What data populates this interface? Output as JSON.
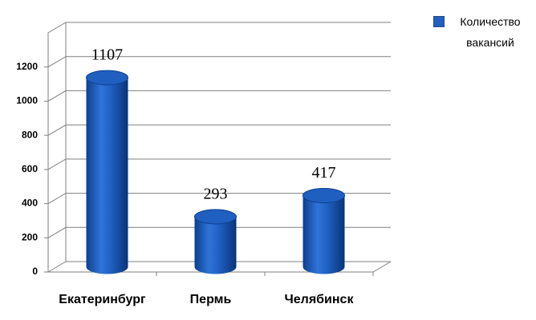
{
  "chart_data": {
    "type": "bar",
    "categories": [
      "Екатеринбург",
      "Пермь",
      "Челябинск"
    ],
    "series": [
      {
        "name": "Количество вакансий",
        "color": "#1f5fc0",
        "values": [
          1107,
          293,
          417
        ]
      }
    ],
    "ylim": [
      0,
      1400
    ],
    "yticks": [
      0,
      200,
      400,
      600,
      800,
      1000,
      1200
    ],
    "grid": true,
    "legend": "top-right"
  }
}
